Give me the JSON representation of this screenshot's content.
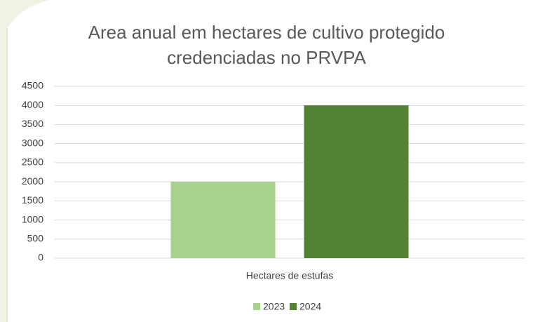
{
  "chart_data": {
    "type": "bar",
    "title": "Area anual em hectares de cultivo protegido credenciadas no PRVPA",
    "categories": [
      "Hectares de estufas"
    ],
    "series": [
      {
        "name": "2023",
        "color": "#a9d18e",
        "values": [
          2000
        ]
      },
      {
        "name": "2024",
        "color": "#548235",
        "values": [
          4000
        ]
      }
    ],
    "ylim": [
      0,
      4500
    ],
    "yticks": [
      0,
      500,
      1000,
      1500,
      2000,
      2500,
      3000,
      3500,
      4000,
      4500
    ],
    "grid": true,
    "legend": "bottom"
  }
}
